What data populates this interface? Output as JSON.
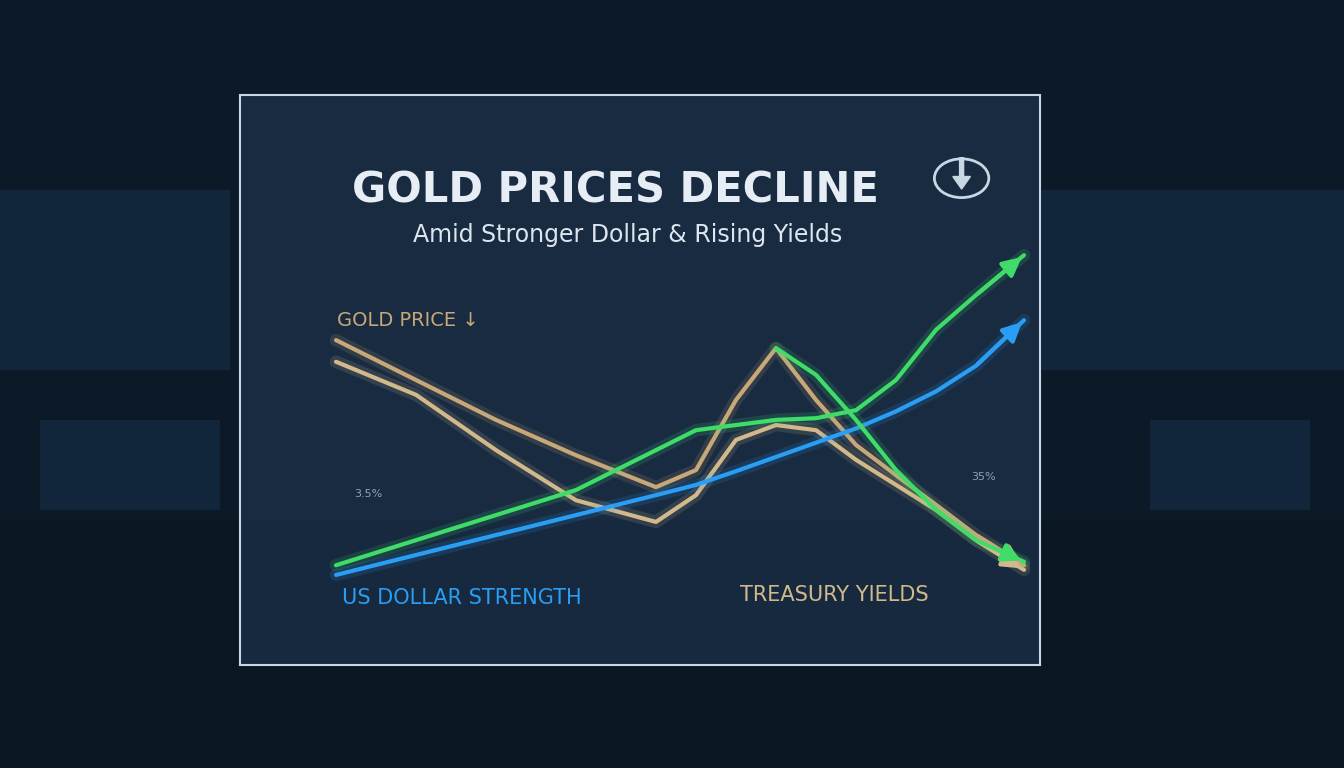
{
  "chart_data": {
    "type": "line",
    "title": "GOLD PRICES DECLINE",
    "subtitle": "Amid Stronger Dollar & Rising Yields",
    "x": [
      12,
      22,
      32,
      42,
      52,
      57,
      62,
      67,
      72,
      77,
      82,
      87,
      92,
      98
    ],
    "series": [
      {
        "name": "GOLD PRICE ↓",
        "color": "#c8a878",
        "values": [
          57.0,
          50.0,
          43.0,
          36.8,
          31.2,
          34.2,
          46.5,
          55.6,
          46.5,
          38.6,
          33.3,
          28.1,
          22.8,
          17.5
        ]
      },
      {
        "name": "TREASURY YIELDS",
        "color": "#d2b98c",
        "values": [
          53.2,
          47.4,
          37.7,
          28.9,
          25.1,
          29.8,
          39.5,
          42.1,
          41.2,
          36.0,
          31.6,
          27.2,
          21.9,
          16.7
        ]
      },
      {
        "name": "US DOLLAR STRENGTH",
        "color": "#2a9df4",
        "values": [
          15.8,
          19.3,
          22.8,
          26.3,
          29.8,
          31.6,
          34.0,
          36.5,
          39.0,
          41.5,
          44.5,
          48.0,
          52.5,
          60.5
        ]
      },
      {
        "color": "#3fdc6a",
        "values": [
          17.5,
          21.9,
          26.3,
          30.7,
          37.7,
          41.2,
          42.1,
          43.0,
          43.3,
          44.7,
          50.0,
          58.8,
          64.9,
          71.9
        ]
      },
      {
        "color": "#3fdc6a",
        "values": [
          null,
          null,
          null,
          null,
          null,
          null,
          null,
          55.6,
          50.9,
          43.0,
          34.2,
          27.2,
          21.9,
          18.1
        ]
      }
    ],
    "annotations": [
      "3.5%",
      "35%"
    ],
    "xlim": [
      0,
      100
    ],
    "ylim": [
      0,
      100
    ],
    "xticks": [],
    "yticks": [],
    "tick_labels": false,
    "grid": false
  }
}
